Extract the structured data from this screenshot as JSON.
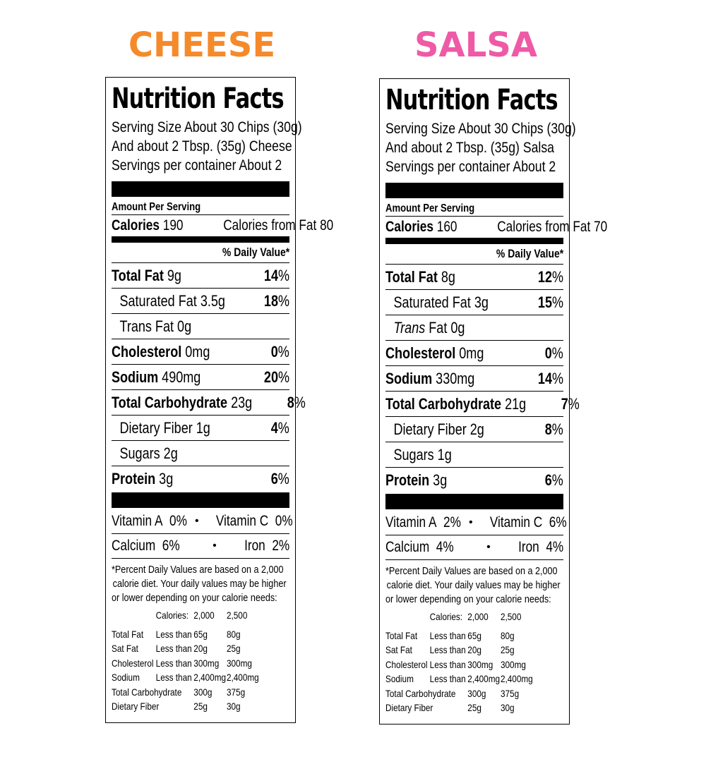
{
  "cheese": {
    "heading": "CHEESE",
    "heading_color": "#f58a2b",
    "label_title": "Nutrition Facts",
    "serving_line1": "Serving Size About 30 Chips (30g)",
    "serving_line2": "And about 2 Tbsp. (35g) Cheese",
    "serving_line3": "Servings per container About 2",
    "amount_per_serving": "Amount Per Serving",
    "calories_label": "Calories",
    "calories_value": "190",
    "calories_from_fat": "Calories from Fat 80",
    "daily_value_header": "% Daily Value*",
    "nutrients": [
      {
        "name": "Total Fat",
        "amount": "9g",
        "dv": "14",
        "pct": "%"
      },
      {
        "name": "Saturated Fat",
        "amount": "3.5g",
        "dv": "18",
        "pct": "%"
      },
      {
        "name": "Trans Fat",
        "amount": "0g",
        "dv": "",
        "pct": ""
      },
      {
        "name": "Cholesterol",
        "amount": "0mg",
        "dv": "0",
        "pct": "%"
      },
      {
        "name": "Sodium",
        "amount": "490mg",
        "dv": "20",
        "pct": "%"
      },
      {
        "name": "Total Carbohydrate",
        "amount": "23g",
        "dv": "8",
        "pct": "%"
      },
      {
        "name": "Dietary Fiber",
        "amount": "1g",
        "dv": "4",
        "pct": "%"
      },
      {
        "name": "Sugars",
        "amount": "2g",
        "dv": "",
        "pct": ""
      },
      {
        "name": "Protein",
        "amount": "3g",
        "dv": "6",
        "pct": "%"
      }
    ],
    "vitamin_a": "Vitamin A",
    "vitamin_a_value": "0%",
    "vitamin_c": "Vitamin C",
    "vitamin_c_value": "0%",
    "calcium": "Calcium",
    "calcium_value": "6%",
    "iron": "Iron",
    "iron_value": "2%",
    "bullet": "•"
  },
  "salsa": {
    "heading": "SALSA",
    "heading_color": "#ee5aa5",
    "label_title": "Nutrition Facts",
    "serving_line1": "Serving Size About 30 Chips (30g)",
    "serving_line2": "And about 2 Tbsp. (35g) Salsa",
    "serving_line3": "Servings per container About 2",
    "amount_per_serving": "Amount Per Serving",
    "calories_label": "Calories",
    "calories_value": "160",
    "calories_from_fat": "Calories from Fat 70",
    "daily_value_header": "% Daily Value*",
    "nutrients": [
      {
        "name": "Total Fat",
        "amount": "8g",
        "dv": "12",
        "pct": "%"
      },
      {
        "name": "Saturated Fat",
        "amount": "3g",
        "dv": "15",
        "pct": "%"
      },
      {
        "name": "Trans",
        "amount": "Fat 0g",
        "dv": "",
        "pct": ""
      },
      {
        "name": "Cholesterol",
        "amount": "0mg",
        "dv": "0",
        "pct": "%"
      },
      {
        "name": "Sodium",
        "amount": "330mg",
        "dv": "14",
        "pct": "%"
      },
      {
        "name": "Total Carbohydrate",
        "amount": "21g",
        "dv": "7",
        "pct": "%"
      },
      {
        "name": "Dietary Fiber",
        "amount": "2g",
        "dv": "8",
        "pct": "%"
      },
      {
        "name": "Sugars",
        "amount": "1g",
        "dv": "",
        "pct": ""
      },
      {
        "name": "Protein",
        "amount": "3g",
        "dv": "6",
        "pct": "%"
      }
    ],
    "vitamin_a": "Vitamin A",
    "vitamin_a_value": "2%",
    "vitamin_c": "Vitamin C",
    "vitamin_c_value": "6%",
    "calcium": "Calcium",
    "calcium_value": "4%",
    "iron": "Iron",
    "iron_value": "4%",
    "bullet": "•"
  },
  "footnote": {
    "line1": "*Percent Daily Values are based on a 2,000",
    "line2": "calorie diet.  Your daily values may be higher",
    "line3": "or lower depending on your calorie needs:",
    "hdr_calories": "Calories:",
    "hdr_2000": "2,000",
    "hdr_2500": "2,500",
    "rows": [
      {
        "name": "Total Fat",
        "qual": "Less than",
        "v1": "65g",
        "v2": "80g"
      },
      {
        "name": "Sat Fat",
        "qual": "Less than",
        "v1": "20g",
        "v2": "25g"
      },
      {
        "name": "Cholesterol",
        "qual": "Less than",
        "v1": "300mg",
        "v2": "300mg"
      },
      {
        "name": "Sodium",
        "qual": "Less than",
        "v1": "2,400mg",
        "v2": "2,400mg"
      },
      {
        "name": "Total Carbohydrate",
        "qual": "",
        "v1": "300g",
        "v2": "375g"
      },
      {
        "name": "Dietary Fiber",
        "qual": "",
        "v1": "25g",
        "v2": "30g"
      }
    ]
  }
}
